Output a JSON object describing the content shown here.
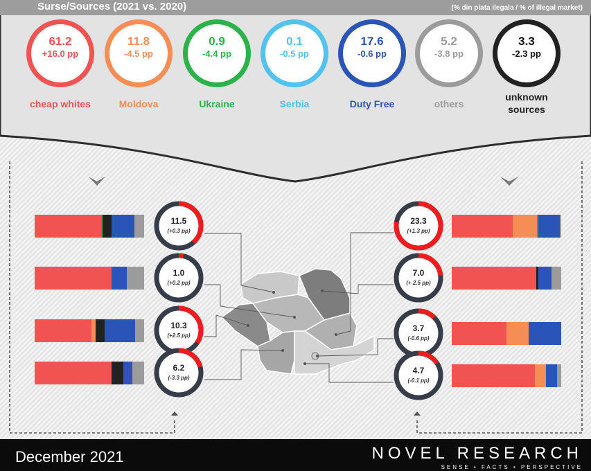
{
  "header": {
    "title": "Surse/Sources (2021 vs. 2020)",
    "subtitle": "(% din piata ilegala / % of illegal market)"
  },
  "colors": {
    "cheap_whites": "#f05352",
    "moldova": "#f68d55",
    "ukraine": "#2bb34a",
    "serbia": "#50c3ef",
    "duty_free": "#2a54b7",
    "others": "#9b9b9b",
    "unknown": "#222222",
    "ring_track": "#363d49",
    "ring_fill": "#ee1c1c"
  },
  "sources": [
    {
      "value": "61.2",
      "change": "+16.0 pp",
      "label": "cheap whites",
      "color": "#f05352"
    },
    {
      "value": "11.8",
      "change": "-4.5 pp",
      "label": "Moldova",
      "color": "#f68d55"
    },
    {
      "value": "0.9",
      "change": "-4.4 pp",
      "label": "Ukraine",
      "color": "#2bb34a"
    },
    {
      "value": "0.1",
      "change": "-0.5 pp",
      "label": "Serbia",
      "color": "#50c3ef"
    },
    {
      "value": "17.6",
      "change": "-0.6 pp",
      "label": "Duty Free",
      "color": "#2a54b7"
    },
    {
      "value": "5.2",
      "change": "-3.8 pp",
      "label": "others",
      "color": "#9b9b9b"
    },
    {
      "value": "3.3",
      "change": "-2.3 pp",
      "label": "unknown\nsources",
      "color": "#222222"
    }
  ],
  "chart_data": {
    "type": "bar",
    "segment_order": [
      "cheap whites",
      "Moldova",
      "Ukraine",
      "Serbia",
      "unknown sources",
      "Duty Free",
      "others"
    ],
    "regions": [
      {
        "side": "left",
        "share": 11.5,
        "change": "(+0.3 pp)",
        "segments": [
          61,
          0,
          1,
          0,
          8,
          21,
          9
        ]
      },
      {
        "side": "left",
        "share": 1.0,
        "change": "(+0.2 pp)",
        "segments": [
          70,
          0,
          0,
          0,
          0,
          14,
          16
        ]
      },
      {
        "side": "left",
        "share": 10.3,
        "change": "(+2.5 pp)",
        "segments": [
          52,
          4,
          0,
          0,
          8,
          28,
          8
        ]
      },
      {
        "side": "left",
        "share": 6.2,
        "change": "(-3.3 pp)",
        "segments": [
          70,
          0,
          0,
          0,
          11,
          8,
          11
        ]
      },
      {
        "side": "right",
        "share": 23.3,
        "change": "(+1.3 pp)",
        "segments": [
          56,
          22,
          1,
          0,
          0,
          20,
          1
        ]
      },
      {
        "side": "right",
        "share": 7.0,
        "change": "(+ 2.5 pp)",
        "segments": [
          77,
          0,
          0,
          0,
          2,
          12,
          9
        ]
      },
      {
        "side": "right",
        "share": 3.7,
        "change": "(-0.6 pp)",
        "segments": [
          50,
          20,
          0,
          0,
          0,
          30,
          0
        ]
      },
      {
        "side": "right",
        "share": 4.7,
        "change": "(-0.1 pp)",
        "segments": [
          76,
          10,
          0,
          0,
          0,
          10,
          4
        ]
      }
    ]
  },
  "footer": {
    "date": "December 2021",
    "brand": "NOVEL RESEARCH",
    "tagline": "SENSE • FACTS • PERSPECTIVE"
  }
}
